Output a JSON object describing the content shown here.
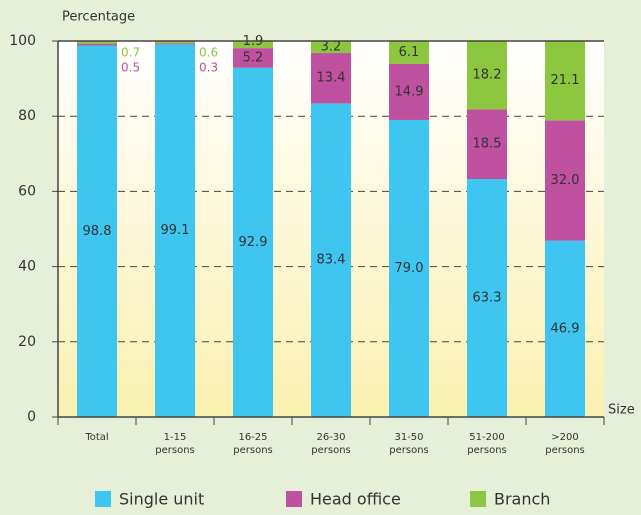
{
  "chart_data": {
    "type": "stacked_bar",
    "y_label": "Percentage",
    "x_label": "Size",
    "categories": [
      "Total",
      "1-15 persons",
      "16-25 persons",
      "26-30 persons",
      "31-50 persons",
      "51-200 persons",
      ">200 persons"
    ],
    "series": [
      {
        "name": "Single unit",
        "color": "#3ec6f0",
        "values": [
          98.8,
          99.1,
          92.9,
          83.4,
          79.0,
          63.3,
          46.9
        ],
        "value_labels": [
          "98.8",
          "99.1",
          "92.9",
          "83.4",
          "79.0",
          "63.3",
          "46.9"
        ]
      },
      {
        "name": "Head office",
        "color": "#c050a0",
        "values": [
          0.5,
          0.3,
          5.2,
          13.4,
          14.9,
          18.5,
          32.0
        ],
        "value_labels": [
          "0.5",
          "0.3",
          "5.2",
          "13.4",
          "14.9",
          "18.5",
          "32.0"
        ]
      },
      {
        "name": "Branch",
        "color": "#8dc63f",
        "values": [
          0.7,
          0.6,
          1.9,
          3.2,
          6.1,
          18.2,
          21.1
        ],
        "value_labels": [
          "0.7",
          "0.6",
          "1.9",
          "3.2",
          "6.1",
          "18.2",
          "21.1"
        ]
      }
    ],
    "ylim": [
      0,
      100
    ],
    "yticks": [
      0,
      20,
      40,
      60,
      80,
      100
    ],
    "grid": true
  }
}
